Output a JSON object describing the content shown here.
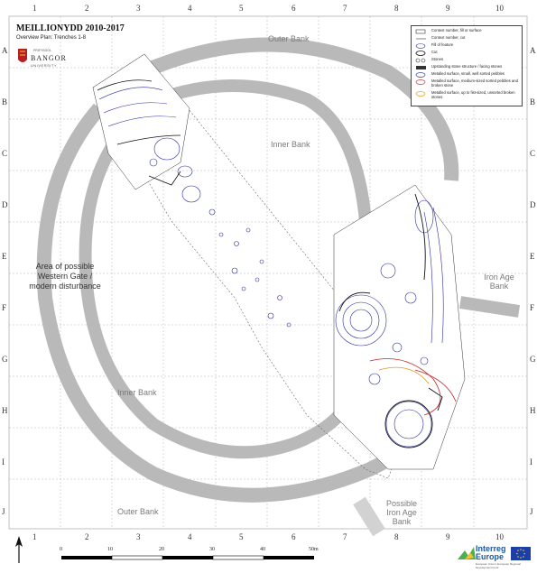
{
  "title": "MEILLIONYDD 2010-2017",
  "subtitle": "Overview Plan: Trenches 1-8",
  "institution": {
    "name": "BANGOR",
    "sub": "UNIVERSITY",
    "top": "PRIFYSGOL"
  },
  "grid": {
    "columns": [
      "1",
      "2",
      "3",
      "4",
      "5",
      "6",
      "7",
      "8",
      "9",
      "10"
    ],
    "rows": [
      "A",
      "B",
      "C",
      "D",
      "E",
      "F",
      "G",
      "H",
      "I",
      "J"
    ]
  },
  "labels": {
    "outer_bank_top": "Outer Bank",
    "inner_bank_top": "Inner Bank",
    "western_gate": "Area of possible Western Gate / modern disturbance",
    "western_gate_lines": [
      "Area of possible",
      "Western Gate /",
      "modern disturbance"
    ],
    "iron_age_bank_east_lines": [
      "Iron Age",
      "Bank"
    ],
    "inner_bank_bottom": "Inner Bank",
    "outer_bank_bottom": "Outer Bank",
    "possible_iron_age_bank_lines": [
      "Possible",
      "Iron Age",
      "Bank"
    ]
  },
  "legend": {
    "items": [
      {
        "label": "Context number, fill or surface",
        "symbol": "context-fill-icon"
      },
      {
        "label": "Context number, cut",
        "symbol": "context-cut-icon"
      },
      {
        "label": "Fill of feature",
        "symbol": "fill-feature-icon"
      },
      {
        "label": "Cut",
        "symbol": "cut-icon"
      },
      {
        "label": "Stones",
        "symbol": "stones-icon"
      },
      {
        "label": "Upstanding stone structure / facing stones",
        "symbol": "stone-structure-icon"
      },
      {
        "label": "Metalled surface, small, well sorted pebbles",
        "symbol": "metalled-small-icon",
        "color": "#3b3bb0"
      },
      {
        "label": "Metalled surface, medium-sized sorted pebbles and broken stone",
        "symbol": "metalled-medium-icon",
        "color": "#c23b3b"
      },
      {
        "label": "Metalled surface, up to fist-sized, unsorted broken stones",
        "symbol": "metalled-large-icon",
        "color": "#e0a020"
      }
    ]
  },
  "scale": {
    "ticks": [
      "0",
      "10",
      "20",
      "30",
      "40",
      "50m"
    ],
    "unit": "m"
  },
  "footer": {
    "logo_line1": "Interreg",
    "logo_line2": "Europe",
    "logo_sub": "European Union | European Regional Development Fund"
  },
  "colors": {
    "bank_grey": "#b9b9b9",
    "bank_label": "#7a7a7a",
    "feature_blue": "#2a2aa0",
    "feature_red": "#c02828",
    "feature_orange": "#e09a2a",
    "grid_line": "#b0b0b0"
  }
}
